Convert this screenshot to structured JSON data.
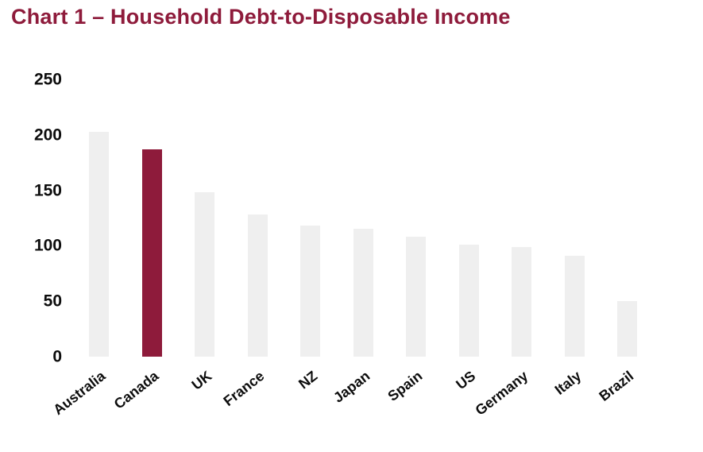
{
  "title": "Chart 1 – Household Debt-to-Disposable Income",
  "chart_data": {
    "type": "bar",
    "title": "Chart 1 – Household Debt-to-Disposable Income",
    "categories": [
      "Australia",
      "Canada",
      "UK",
      "France",
      "NZ",
      "Japan",
      "Spain",
      "US",
      "Germany",
      "Italy",
      "Brazil"
    ],
    "values": [
      203,
      187,
      148,
      128,
      118,
      115,
      108,
      101,
      99,
      91,
      50
    ],
    "highlight_category": "Canada",
    "xlabel": "",
    "ylabel": "",
    "ylim": [
      0,
      250
    ],
    "yticks": [
      0,
      50,
      100,
      150,
      200,
      250
    ],
    "grid": false,
    "legend": "none",
    "colors": {
      "bar_default": "#EFEFEF",
      "bar_highlight": "#8E1B3B",
      "title_color": "#8E1B3B",
      "axis_text": "#0d0d0d",
      "background": "#ffffff"
    }
  }
}
